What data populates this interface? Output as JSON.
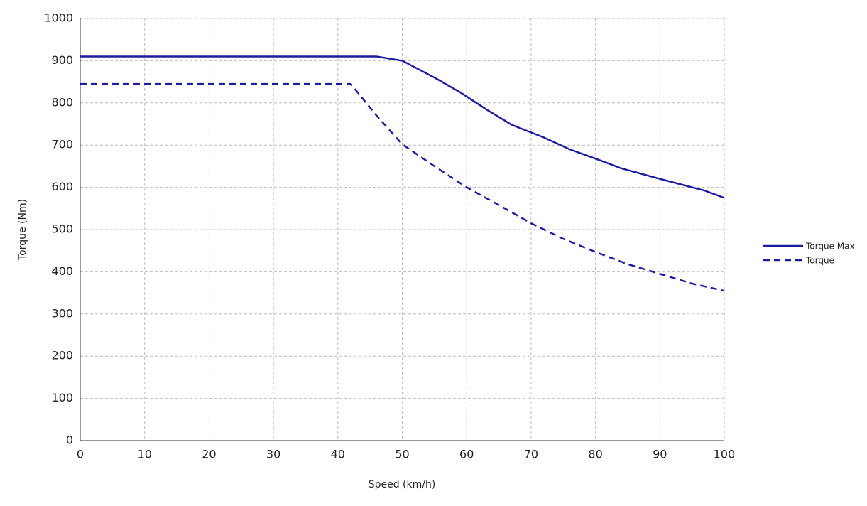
{
  "chart_data": {
    "type": "line",
    "x_label": "Speed (km/h)",
    "y_label": "Torque (Nm)",
    "xlim": [
      0,
      100
    ],
    "xticks": [
      0,
      10,
      20,
      30,
      40,
      50,
      60,
      70,
      80,
      90,
      100
    ],
    "ylim": [
      0,
      1000
    ],
    "yticks": [
      0,
      100,
      200,
      300,
      400,
      500,
      600,
      700,
      800,
      900,
      1000
    ],
    "grid": true,
    "legend": "right",
    "series": [
      {
        "name": "Torque Max",
        "color": "#1c1ca3",
        "style": "solid",
        "x": [
          0,
          46,
          50,
          55,
          59,
          63,
          67,
          72,
          76,
          80,
          84,
          90,
          97,
          100
        ],
        "values": [
          910,
          910,
          900,
          860,
          825,
          785,
          748,
          718,
          690,
          668,
          645,
          620,
          592,
          575
        ]
      },
      {
        "name": "Torque",
        "color": "#1c1ca3",
        "style": "dashed",
        "x": [
          0,
          42,
          46,
          50,
          55,
          60,
          65,
          70,
          75,
          80,
          85,
          90,
          95,
          100
        ],
        "values": [
          845,
          845,
          770,
          702,
          650,
          600,
          558,
          515,
          478,
          447,
          418,
          395,
          372,
          355
        ]
      }
    ]
  }
}
